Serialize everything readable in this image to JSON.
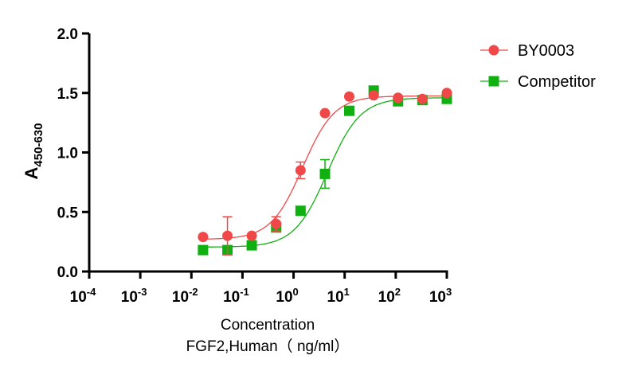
{
  "chart_data": {
    "type": "scatter",
    "xscale": "log",
    "xlim": [
      0.0001,
      1000
    ],
    "ylim": [
      0,
      2.0
    ],
    "xticks": [
      "10",
      "10",
      "10",
      "10",
      "10",
      "10",
      "10",
      "10"
    ],
    "xtick_exponents": [
      "-4",
      "-3",
      "-2",
      "-1",
      "0",
      "1",
      "2",
      "3"
    ],
    "yticks": [
      "0.0",
      "0.5",
      "1.0",
      "1.5",
      "2.0"
    ],
    "xlabel": "Concentration",
    "xlabel2": "FGF2,Human（ ng/ml）",
    "ylabel": "A",
    "ylabel_sub": "450-630",
    "legend_position": "top-right",
    "x": [
      0.0169,
      0.0508,
      0.152,
      0.457,
      1.37,
      4.12,
      12.3,
      37.0,
      111,
      333,
      1000
    ],
    "series": [
      {
        "name": "BY0003",
        "color": "#f04848",
        "marker": "circle",
        "values": [
          0.29,
          0.3,
          0.3,
          0.4,
          0.85,
          1.33,
          1.47,
          1.48,
          1.46,
          1.45,
          1.5
        ],
        "error": [
          0,
          0.16,
          0,
          0.06,
          0.07,
          0,
          0,
          0,
          0,
          0,
          0
        ],
        "fit": {
          "bottom": 0.27,
          "top": 1.475,
          "ec50": 1.5,
          "hill": 1.4
        }
      },
      {
        "name": "Competitor",
        "color": "#10b010",
        "marker": "square",
        "values": [
          0.18,
          0.18,
          0.22,
          0.37,
          0.51,
          0.82,
          1.35,
          1.52,
          1.43,
          1.44,
          1.45
        ],
        "error": [
          0,
          0,
          0,
          0,
          0,
          0.12,
          0,
          0,
          0,
          0,
          0
        ],
        "fit": {
          "bottom": 0.205,
          "top": 1.46,
          "ec50": 4.6,
          "hill": 1.35
        }
      }
    ]
  }
}
